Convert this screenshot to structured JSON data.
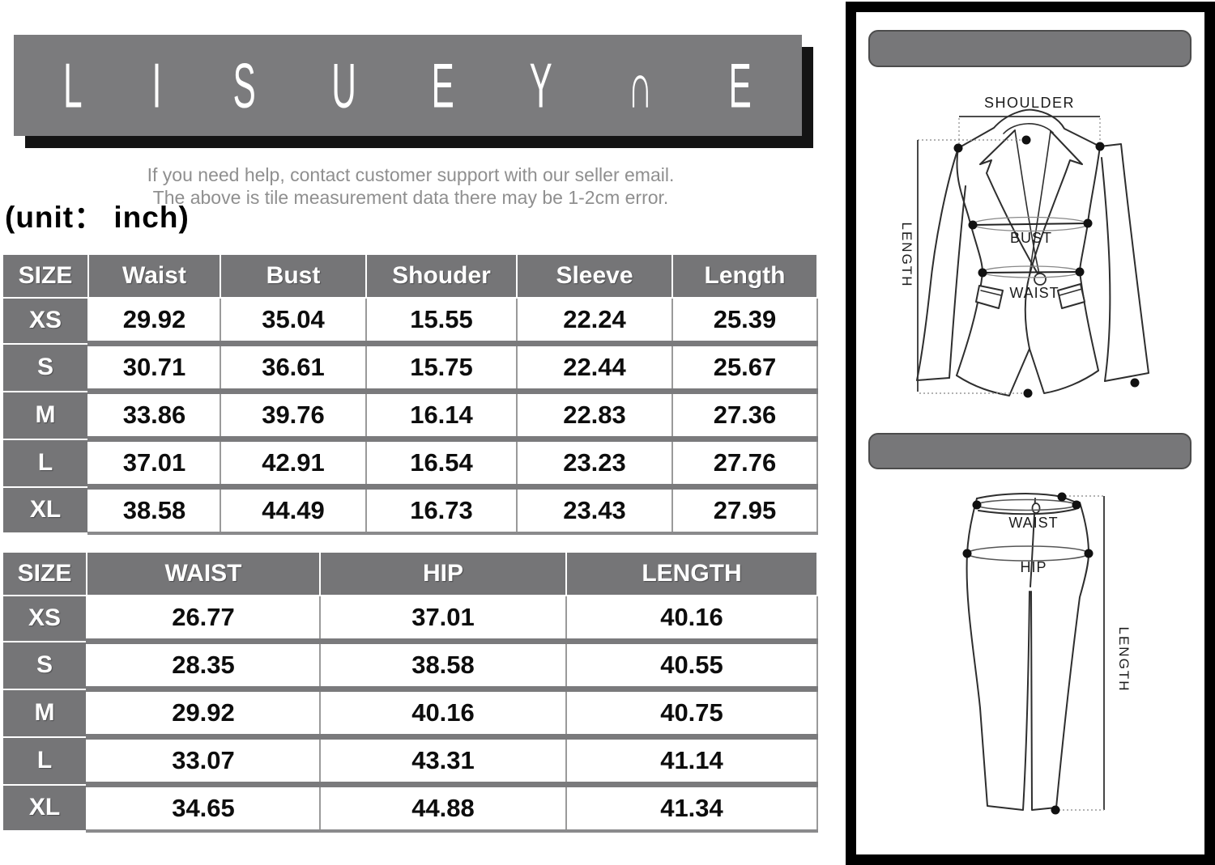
{
  "brand": {
    "name": "LISUEYNE",
    "letters": [
      "L",
      "I",
      "S",
      "U",
      "E",
      "Y",
      "∩",
      "E"
    ]
  },
  "notes": {
    "line1": "If you need help, contact customer support with our seller email.",
    "line2": "The above is tile measurement data there may be 1-2cm error.",
    "unit": "(unit： inch)"
  },
  "jacket_table": {
    "headers": [
      "SIZE",
      "Waist",
      "Bust",
      "Shouder",
      "Sleeve",
      "Length"
    ],
    "rows": [
      {
        "size": "XS",
        "values": [
          "29.92",
          "35.04",
          "15.55",
          "22.24",
          "25.39"
        ]
      },
      {
        "size": "S",
        "values": [
          "30.71",
          "36.61",
          "15.75",
          "22.44",
          "25.67"
        ]
      },
      {
        "size": "M",
        "values": [
          "33.86",
          "39.76",
          "16.14",
          "22.83",
          "27.36"
        ]
      },
      {
        "size": "L",
        "values": [
          "37.01",
          "42.91",
          "16.54",
          "23.23",
          "27.76"
        ]
      },
      {
        "size": "XL",
        "values": [
          "38.58",
          "44.49",
          "16.73",
          "23.43",
          "27.95"
        ]
      }
    ]
  },
  "pants_table": {
    "headers": [
      "SIZE",
      "WAIST",
      "HIP",
      "LENGTH"
    ],
    "rows": [
      {
        "size": "XS",
        "values": [
          "26.77",
          "37.01",
          "40.16"
        ]
      },
      {
        "size": "S",
        "values": [
          "28.35",
          "38.58",
          "40.55"
        ]
      },
      {
        "size": "M",
        "values": [
          "29.92",
          "40.16",
          "40.75"
        ]
      },
      {
        "size": "L",
        "values": [
          "33.07",
          "43.31",
          "41.14"
        ]
      },
      {
        "size": "XL",
        "values": [
          "34.65",
          "44.88",
          "41.34"
        ]
      }
    ]
  },
  "diagram": {
    "jacket_labels": {
      "shoulder": "SHOULDER",
      "bust": "BUST",
      "waist": "WAIST",
      "length": "LENGTH"
    },
    "pants_labels": {
      "waist": "WAIST",
      "hip": "HIP",
      "length": "LENGTH"
    }
  },
  "colors": {
    "banner_gray": "#7b7b7d",
    "banner_shadow": "#141414",
    "table_header_gray": "#757577",
    "row_gap_gray": "#7a7a7c",
    "help_text_gray": "#8f8f8f",
    "bar_gray": "#777779",
    "line_ink": "#2e2e2e"
  }
}
